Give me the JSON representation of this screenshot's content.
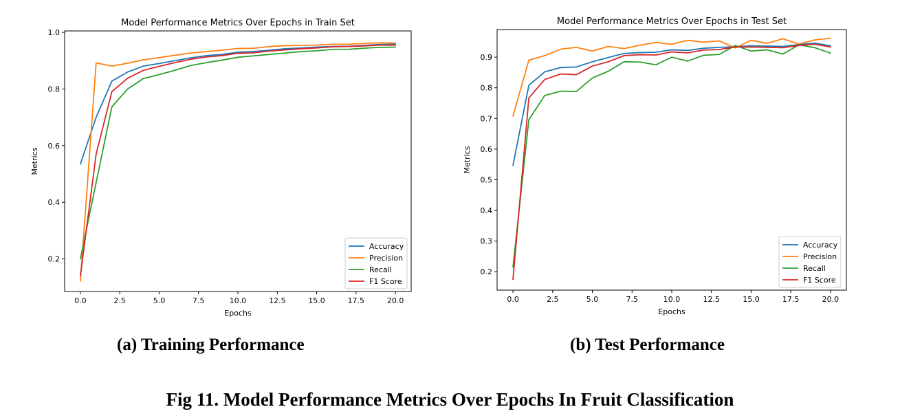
{
  "figure": {
    "caption_a": "(a) Training Performance",
    "caption_b": "(b) Test Performance",
    "caption": "Fig 11. Model Performance Metrics Over Epochs In Fruit Classification"
  },
  "colors": {
    "Accuracy": "#1f77b4",
    "Precision": "#ff7f0e",
    "Recall": "#2ca02c",
    "F1 Score": "#d62728"
  },
  "chart_data": [
    {
      "type": "line",
      "title": "Model Performance Metrics Over Epochs in Train Set",
      "xlabel": "Epochs",
      "ylabel": "Metrics",
      "xlim": [
        -1,
        21
      ],
      "ylim": [
        0.085,
        1.005
      ],
      "xticks": [
        0.0,
        2.5,
        5.0,
        7.5,
        10.0,
        12.5,
        15.0,
        17.5,
        20.0
      ],
      "xtick_labels": [
        "0.0",
        "2.5",
        "5.0",
        "7.5",
        "10.0",
        "12.5",
        "15.0",
        "17.5",
        "20.0"
      ],
      "yticks": [
        0.2,
        0.4,
        0.6,
        0.8,
        1.0
      ],
      "ytick_labels": [
        "0.2",
        "0.4",
        "0.6",
        "0.8",
        "1.0"
      ],
      "grid": false,
      "legend": "lower-right",
      "x": [
        0,
        1,
        2,
        3,
        4,
        5,
        6,
        7,
        8,
        9,
        10,
        11,
        12,
        13,
        14,
        15,
        16,
        17,
        18,
        19,
        20
      ],
      "series": [
        {
          "name": "Accuracy",
          "values": [
            0.535,
            0.7,
            0.828,
            0.86,
            0.881,
            0.89,
            0.9,
            0.91,
            0.918,
            0.922,
            0.93,
            0.932,
            0.937,
            0.942,
            0.945,
            0.948,
            0.95,
            0.951,
            0.954,
            0.957,
            0.958
          ]
        },
        {
          "name": "Precision",
          "values": [
            0.122,
            0.892,
            0.881,
            0.891,
            0.903,
            0.911,
            0.919,
            0.927,
            0.932,
            0.937,
            0.943,
            0.944,
            0.95,
            0.953,
            0.954,
            0.955,
            0.958,
            0.958,
            0.961,
            0.963,
            0.962
          ]
        },
        {
          "name": "Recall",
          "values": [
            0.2,
            0.47,
            0.737,
            0.8,
            0.837,
            0.851,
            0.866,
            0.883,
            0.893,
            0.902,
            0.912,
            0.917,
            0.922,
            0.927,
            0.932,
            0.935,
            0.94,
            0.94,
            0.944,
            0.947,
            0.948
          ]
        },
        {
          "name": "F1 Score",
          "values": [
            0.14,
            0.57,
            0.791,
            0.838,
            0.866,
            0.88,
            0.893,
            0.905,
            0.913,
            0.918,
            0.926,
            0.928,
            0.934,
            0.938,
            0.942,
            0.945,
            0.949,
            0.95,
            0.952,
            0.955,
            0.955
          ]
        }
      ]
    },
    {
      "type": "line",
      "title": "Model Performance Metrics Over Epochs in Test Set",
      "xlabel": "Epochs",
      "ylabel": "Metrics",
      "xlim": [
        -1,
        21
      ],
      "ylim": [
        0.14,
        0.99
      ],
      "xticks": [
        0.0,
        2.5,
        5.0,
        7.5,
        10.0,
        12.5,
        15.0,
        17.5,
        20.0
      ],
      "xtick_labels": [
        "0.0",
        "2.5",
        "5.0",
        "7.5",
        "10.0",
        "12.5",
        "15.0",
        "17.5",
        "20.0"
      ],
      "yticks": [
        0.2,
        0.3,
        0.4,
        0.5,
        0.6,
        0.7,
        0.8,
        0.9
      ],
      "ytick_labels": [
        "0.2",
        "0.3",
        "0.4",
        "0.5",
        "0.6",
        "0.7",
        "0.8",
        "0.9"
      ],
      "grid": false,
      "legend": "lower-right",
      "x": [
        0,
        1,
        2,
        3,
        4,
        5,
        6,
        7,
        8,
        9,
        10,
        11,
        12,
        13,
        14,
        15,
        16,
        17,
        18,
        19,
        20
      ],
      "series": [
        {
          "name": "Accuracy",
          "values": [
            0.547,
            0.808,
            0.852,
            0.866,
            0.868,
            0.885,
            0.899,
            0.912,
            0.915,
            0.916,
            0.924,
            0.922,
            0.929,
            0.932,
            0.934,
            0.937,
            0.936,
            0.935,
            0.941,
            0.946,
            0.937
          ]
        },
        {
          "name": "Precision",
          "values": [
            0.708,
            0.89,
            0.905,
            0.926,
            0.932,
            0.92,
            0.935,
            0.928,
            0.939,
            0.948,
            0.942,
            0.955,
            0.949,
            0.953,
            0.93,
            0.955,
            0.945,
            0.96,
            0.943,
            0.956,
            0.962
          ]
        },
        {
          "name": "Recall",
          "values": [
            0.215,
            0.696,
            0.775,
            0.789,
            0.788,
            0.832,
            0.854,
            0.885,
            0.884,
            0.875,
            0.9,
            0.887,
            0.906,
            0.909,
            0.938,
            0.92,
            0.924,
            0.91,
            0.94,
            0.931,
            0.913
          ]
        },
        {
          "name": "F1 Score",
          "values": [
            0.175,
            0.767,
            0.827,
            0.845,
            0.843,
            0.871,
            0.885,
            0.905,
            0.908,
            0.907,
            0.917,
            0.914,
            0.923,
            0.925,
            0.933,
            0.933,
            0.932,
            0.931,
            0.938,
            0.942,
            0.933
          ]
        }
      ]
    }
  ]
}
